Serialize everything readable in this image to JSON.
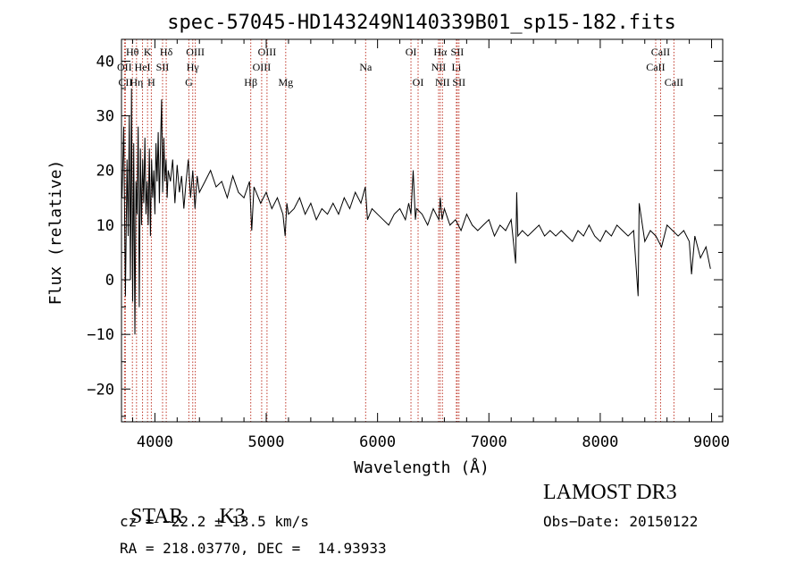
{
  "chart_data": {
    "type": "line",
    "title": "spec-57045-HD143249N140339B01_sp15-182.fits",
    "xlabel": "Wavelength (Å)",
    "ylabel": "Flux (relative)",
    "xlim": [
      3700,
      9100
    ],
    "ylim": [
      -26,
      44
    ],
    "xticks": [
      4000,
      5000,
      6000,
      7000,
      8000,
      9000
    ],
    "xtick_labels": [
      "4000",
      "5000",
      "6000",
      "7000",
      "8000",
      "9000"
    ],
    "yticks": [
      -20,
      -10,
      0,
      10,
      20,
      30,
      40
    ],
    "ytick_labels": [
      "−20",
      "−10",
      "0",
      "10",
      "20",
      "30",
      "40"
    ],
    "series": [
      {
        "name": "flux",
        "x": [
          3705,
          3720,
          3735,
          3750,
          3760,
          3770,
          3780,
          3790,
          3800,
          3810,
          3820,
          3830,
          3840,
          3850,
          3860,
          3870,
          3880,
          3890,
          3900,
          3910,
          3920,
          3930,
          3940,
          3950,
          3960,
          3970,
          3980,
          3990,
          4000,
          4010,
          4020,
          4030,
          4040,
          4050,
          4060,
          4070,
          4080,
          4090,
          4100,
          4110,
          4120,
          4140,
          4160,
          4180,
          4200,
          4220,
          4240,
          4260,
          4280,
          4300,
          4320,
          4340,
          4360,
          4380,
          4400,
          4450,
          4500,
          4550,
          4600,
          4650,
          4700,
          4750,
          4800,
          4850,
          4870,
          4890,
          4950,
          5000,
          5050,
          5100,
          5150,
          5170,
          5185,
          5200,
          5250,
          5300,
          5350,
          5400,
          5450,
          5500,
          5550,
          5600,
          5650,
          5700,
          5750,
          5800,
          5850,
          5890,
          5910,
          5950,
          6000,
          6050,
          6100,
          6150,
          6200,
          6250,
          6280,
          6300,
          6320,
          6340,
          6350,
          6400,
          6450,
          6500,
          6550,
          6563,
          6580,
          6600,
          6650,
          6700,
          6750,
          6800,
          6850,
          6900,
          6950,
          7000,
          7050,
          7100,
          7150,
          7200,
          7240,
          7250,
          7260,
          7300,
          7350,
          7400,
          7450,
          7500,
          7550,
          7600,
          7650,
          7700,
          7750,
          7800,
          7850,
          7900,
          7950,
          8000,
          8050,
          8100,
          8150,
          8200,
          8250,
          8300,
          8340,
          8350,
          8400,
          8450,
          8500,
          8550,
          8600,
          8650,
          8700,
          8750,
          8800,
          8820,
          8850,
          8900,
          8950,
          8990
        ],
        "y": [
          15,
          28,
          -3,
          22,
          8,
          30,
          0,
          35,
          -4,
          25,
          -10,
          18,
          12,
          28,
          -5,
          24,
          10,
          22,
          14,
          26,
          12,
          18,
          10,
          24,
          8,
          22,
          15,
          20,
          12,
          25,
          18,
          27,
          14,
          24,
          33,
          16,
          26,
          18,
          22,
          15,
          20,
          18,
          22,
          14,
          21,
          16,
          19,
          13,
          18,
          22,
          15,
          20,
          13,
          19,
          16,
          18,
          20,
          17,
          18,
          15,
          19,
          16,
          15,
          18,
          9,
          17,
          14,
          16,
          13,
          15,
          12,
          8,
          14,
          12,
          13,
          15,
          12,
          14,
          11,
          13,
          12,
          14,
          12,
          15,
          13,
          16,
          14,
          17,
          11,
          13,
          12,
          11,
          10,
          12,
          13,
          11,
          14,
          12,
          20,
          11,
          13,
          12,
          10,
          13,
          11,
          15,
          11,
          13,
          10,
          11,
          9,
          12,
          10,
          9,
          10,
          11,
          8,
          10,
          9,
          11,
          3,
          16,
          8,
          9,
          8,
          9,
          10,
          8,
          9,
          8,
          9,
          8,
          7,
          9,
          8,
          10,
          8,
          7,
          9,
          8,
          10,
          9,
          8,
          9,
          -3,
          14,
          7,
          9,
          8,
          6,
          10,
          9,
          8,
          9,
          7,
          1,
          8,
          4,
          6,
          2
        ]
      }
    ],
    "lines": [
      {
        "label": "Hθ",
        "x": 3798,
        "row": 1
      },
      {
        "label": "OII",
        "x": 3727,
        "row": 2
      },
      {
        "label": "CII",
        "x": 3735,
        "row": 3
      },
      {
        "label": "Hη",
        "x": 3835,
        "row": 3
      },
      {
        "label": "HeI",
        "x": 3889,
        "row": 2
      },
      {
        "label": "K",
        "x": 3934,
        "row": 1
      },
      {
        "label": "H",
        "x": 3968,
        "row": 3
      },
      {
        "label": "SII",
        "x": 4069,
        "row": 2
      },
      {
        "label": "Hδ",
        "x": 4102,
        "row": 1
      },
      {
        "label": "G",
        "x": 4305,
        "row": 3
      },
      {
        "label": "Hγ",
        "x": 4340,
        "row": 2
      },
      {
        "label": "OIII",
        "x": 4363,
        "row": 1
      },
      {
        "label": "Hβ",
        "x": 4861,
        "row": 3
      },
      {
        "label": "OIII",
        "x": 4959,
        "row": 2
      },
      {
        "label": "OIII",
        "x": 5007,
        "row": 1
      },
      {
        "label": "Mg",
        "x": 5175,
        "row": 3
      },
      {
        "label": "Na",
        "x": 5893,
        "row": 2
      },
      {
        "label": "OI",
        "x": 6300,
        "row": 1
      },
      {
        "label": "OI",
        "x": 6364,
        "row": 3
      },
      {
        "label": "NII",
        "x": 6548,
        "row": 2
      },
      {
        "label": "Hα",
        "x": 6563,
        "row": 1
      },
      {
        "label": "NII",
        "x": 6583,
        "row": 3
      },
      {
        "label": "Li",
        "x": 6708,
        "row": 2
      },
      {
        "label": "SII",
        "x": 6716,
        "row": 1
      },
      {
        "label": "SII",
        "x": 6731,
        "row": 3
      },
      {
        "label": "CaII",
        "x": 8498,
        "row": 2
      },
      {
        "label": "CaII",
        "x": 8542,
        "row": 1
      },
      {
        "label": "CaII",
        "x": 8662,
        "row": 3
      }
    ]
  },
  "info": {
    "class": "STAR",
    "subclass": "K3",
    "survey": "LAMOST DR3",
    "cz": "cz = −22.2 ± 13.5 km/s",
    "obs_date": "Obs−Date: 20150122",
    "coords": "RA = 218.03770, DEC =  14.93933"
  },
  "colors": {
    "line_marker": "#c0392b",
    "spectrum": "#000000",
    "axes": "#000000"
  }
}
